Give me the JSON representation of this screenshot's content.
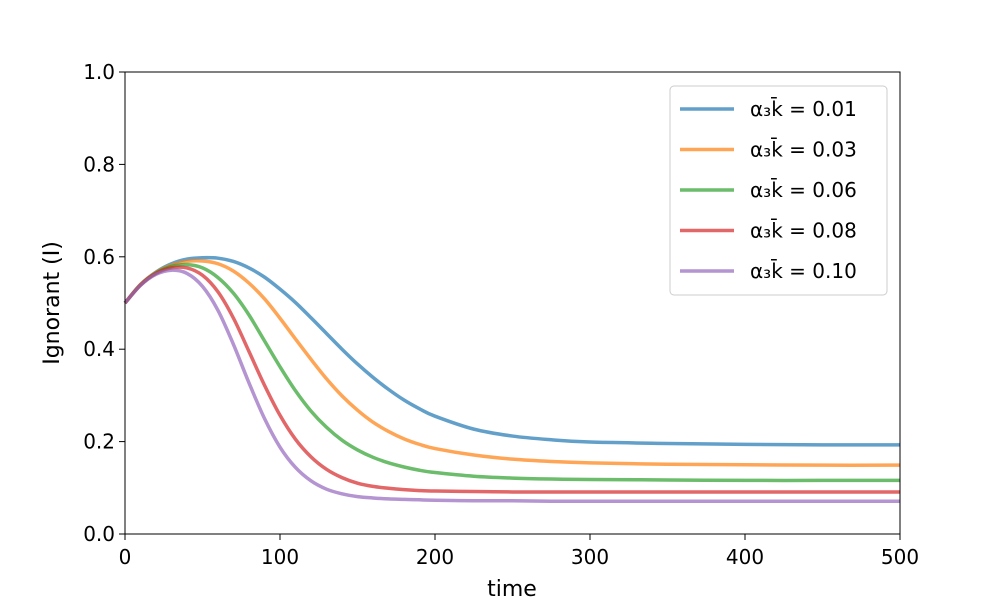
{
  "chart_data": {
    "type": "line",
    "title": "",
    "xlabel": "time",
    "ylabel": "Ignorant (I)",
    "xlim": [
      0,
      500
    ],
    "ylim": [
      0,
      1.0
    ],
    "x_ticks": [
      0,
      100,
      200,
      300,
      400,
      500
    ],
    "x_tick_labels": [
      "0",
      "100",
      "200",
      "300",
      "400",
      "500"
    ],
    "y_ticks": [
      0,
      0.2,
      0.4,
      0.6,
      0.8,
      1.0
    ],
    "y_tick_labels": [
      "0.0",
      "0.2",
      "0.4",
      "0.6",
      "0.8",
      "1.0"
    ],
    "grid": false,
    "legend_position": "upper right",
    "x": [
      0,
      10,
      20,
      30,
      40,
      50,
      60,
      70,
      80,
      90,
      100,
      110,
      120,
      130,
      140,
      150,
      160,
      170,
      180,
      190,
      200,
      225,
      250,
      275,
      300,
      350,
      400,
      450,
      500
    ],
    "series": [
      {
        "name": "α₃k̄ = 0.01",
        "color": "#1f77b4",
        "values": [
          0.5,
          0.54,
          0.567,
          0.585,
          0.595,
          0.598,
          0.597,
          0.59,
          0.576,
          0.556,
          0.53,
          0.501,
          0.468,
          0.434,
          0.4,
          0.368,
          0.339,
          0.313,
          0.29,
          0.271,
          0.255,
          0.227,
          0.212,
          0.204,
          0.199,
          0.196,
          0.194,
          0.193,
          0.193
        ]
      },
      {
        "name": "α₃k̄ = 0.03",
        "color": "#ff7f0e",
        "values": [
          0.5,
          0.54,
          0.566,
          0.582,
          0.59,
          0.591,
          0.585,
          0.569,
          0.543,
          0.509,
          0.467,
          0.422,
          0.378,
          0.336,
          0.299,
          0.268,
          0.242,
          0.222,
          0.206,
          0.194,
          0.185,
          0.171,
          0.162,
          0.157,
          0.154,
          0.151,
          0.15,
          0.149,
          0.149
        ]
      },
      {
        "name": "α₃k̄ = 0.06",
        "color": "#2ca02c",
        "values": [
          0.5,
          0.539,
          0.565,
          0.579,
          0.583,
          0.576,
          0.555,
          0.521,
          0.474,
          0.418,
          0.362,
          0.31,
          0.266,
          0.231,
          0.203,
          0.182,
          0.166,
          0.154,
          0.145,
          0.138,
          0.133,
          0.125,
          0.121,
          0.119,
          0.118,
          0.117,
          0.116,
          0.116,
          0.116
        ]
      },
      {
        "name": "α₃k̄ = 0.08",
        "color": "#d62728",
        "values": [
          0.5,
          0.539,
          0.564,
          0.576,
          0.576,
          0.56,
          0.524,
          0.467,
          0.395,
          0.322,
          0.257,
          0.205,
          0.167,
          0.14,
          0.122,
          0.11,
          0.103,
          0.099,
          0.096,
          0.094,
          0.093,
          0.092,
          0.091,
          0.091,
          0.091,
          0.091,
          0.091,
          0.091,
          0.091
        ]
      },
      {
        "name": "α₃k̄ = 0.10",
        "color": "#9467bd",
        "values": [
          0.5,
          0.538,
          0.562,
          0.571,
          0.564,
          0.536,
          0.484,
          0.41,
          0.327,
          0.25,
          0.188,
          0.144,
          0.115,
          0.097,
          0.087,
          0.081,
          0.078,
          0.076,
          0.075,
          0.074,
          0.073,
          0.072,
          0.072,
          0.071,
          0.071,
          0.071,
          0.071,
          0.071,
          0.071
        ]
      }
    ]
  }
}
